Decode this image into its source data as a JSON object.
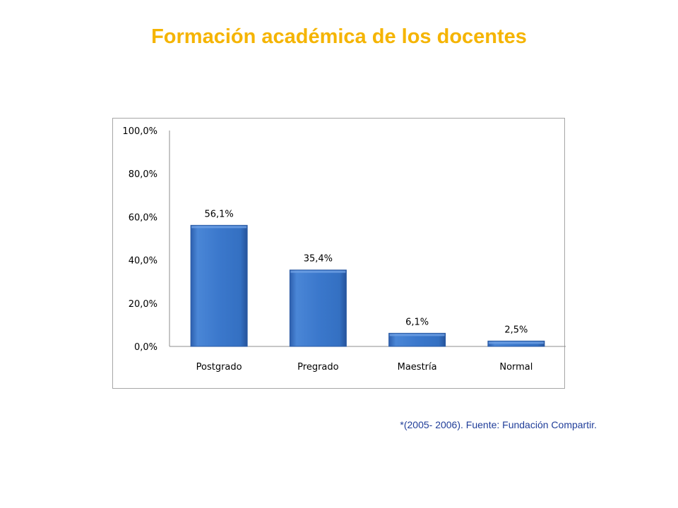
{
  "page": {
    "title": "Formación académica de los docentes",
    "footnote": "*(2005- 2006). Fuente: Fundación Compartir."
  },
  "colors": {
    "title": "#f5b400",
    "bar": "#3a76c8",
    "bar_edge": "#2a5aa3",
    "axis": "#8c8c8c",
    "text": "#000000",
    "footnote": "#1f3d99"
  },
  "chart_data": {
    "type": "bar",
    "title": "",
    "xlabel": "",
    "ylabel": "",
    "categories": [
      "Postgrado",
      "Pregrado",
      "Maestría",
      "Normal"
    ],
    "values": [
      56.1,
      35.4,
      6.1,
      2.5
    ],
    "data_labels": [
      "56,1%",
      "35,4%",
      "6,1%",
      "2,5%"
    ],
    "y_ticks": [
      0,
      20,
      40,
      60,
      80,
      100
    ],
    "y_tick_labels": [
      "0,0%",
      "20,0%",
      "40,0%",
      "60,0%",
      "80,0%",
      "100,0%"
    ],
    "ylim": [
      0,
      100
    ],
    "grid": false,
    "legend": "none"
  }
}
